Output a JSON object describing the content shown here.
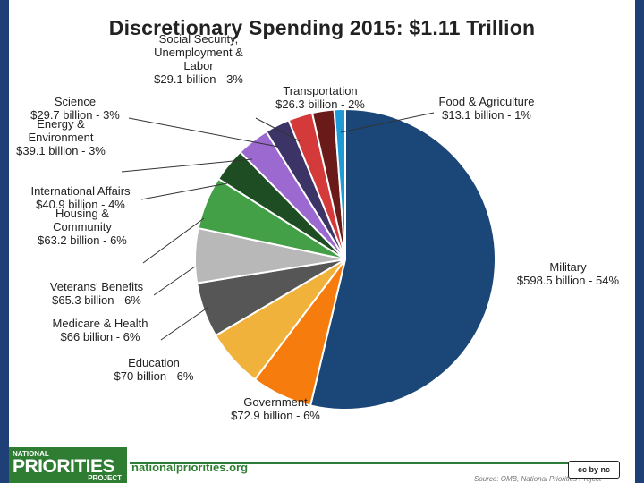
{
  "chart_data": {
    "type": "pie",
    "title": "Discretionary Spending 2015: $1.11 Trillion",
    "slices": [
      {
        "name": "Military",
        "amount": "$598.5 billion - 54%",
        "value": 598.5,
        "color": "#1a4778"
      },
      {
        "name": "Government",
        "amount": "$72.9 billion - 6%",
        "value": 72.9,
        "color": "#f57c0d"
      },
      {
        "name": "Education",
        "amount": "$70 billion - 6%",
        "value": 70,
        "color": "#f0b23b"
      },
      {
        "name": "Medicare & Health",
        "amount": "$66 billion - 6%",
        "value": 66,
        "color": "#565656"
      },
      {
        "name": "Veterans' Benefits",
        "amount": "$65.3 billion - 6%",
        "value": 65.3,
        "color": "#b8b8b8"
      },
      {
        "name": "Housing & Community",
        "amount": "$63.2 billion - 6%",
        "value": 63.2,
        "color": "#43a047"
      },
      {
        "name": "International Affairs",
        "amount": "$40.9 billion - 4%",
        "value": 40.9,
        "color": "#1f4d23"
      },
      {
        "name": "Energy & Environment",
        "amount": "$39.1 billion - 3%",
        "value": 39.1,
        "color": "#9b69d0"
      },
      {
        "name": "Science",
        "amount": "$29.7 billion - 3%",
        "value": 29.7,
        "color": "#3c3466"
      },
      {
        "name": "Social Security, Unemployment & Labor",
        "amount": "$29.1 billion - 3%",
        "value": 29.1,
        "color": "#d43a3a"
      },
      {
        "name": "Transportation",
        "amount": "$26.3 billion - 2%",
        "value": 26.3,
        "color": "#6b1a1a"
      },
      {
        "name": "Food & Agriculture",
        "amount": "$13.1 billion - 1%",
        "value": 13.1,
        "color": "#1e9bd6"
      }
    ]
  },
  "footer": {
    "logo_line1": "NATIONAL",
    "logo_line2": "PRIORITIES",
    "logo_line3": "PROJECT",
    "website": "nationalpriorities.org",
    "source": "Source: OMB, National Priorities Project",
    "license": "cc by nc"
  }
}
